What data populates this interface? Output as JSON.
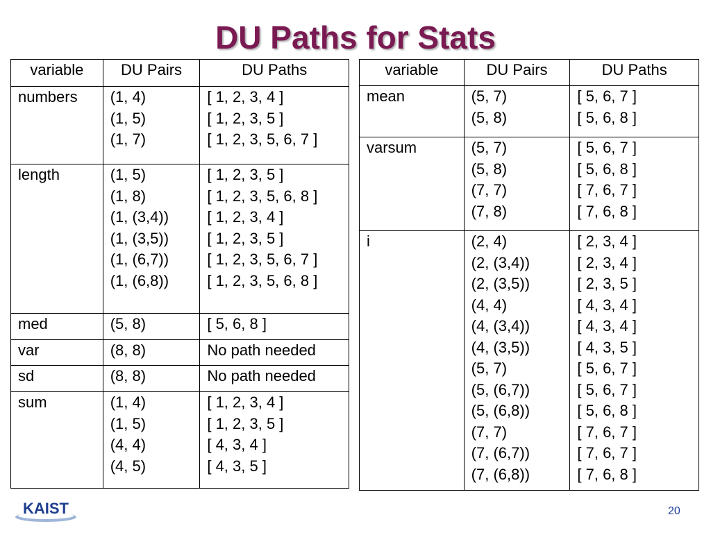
{
  "title": "DU Paths for Stats",
  "headers": [
    "variable",
    "DU Pairs",
    "DU Paths"
  ],
  "left_table": [
    {
      "variable": "numbers",
      "pairs": [
        "(1, 4)",
        "(1, 5)",
        "(1, 7)"
      ],
      "paths": [
        "[ 1, 2, 3, 4 ]",
        "[ 1, 2, 3, 5 ]",
        "[ 1, 2, 3, 5, 6, 7 ]"
      ]
    },
    {
      "variable": "length",
      "pairs": [
        "(1, 5)",
        "(1, 8)",
        "(1, (3,4))",
        "(1, (3,5))",
        "(1, (6,7))",
        "(1, (6,8))"
      ],
      "paths": [
        "[ 1, 2, 3, 5 ]",
        "[ 1, 2, 3, 5, 6, 8 ]",
        "[ 1, 2, 3, 4 ]",
        "[ 1, 2, 3, 5 ]",
        "[ 1, 2, 3, 5, 6, 7 ]",
        "[ 1, 2, 3, 5, 6, 8 ]"
      ]
    },
    {
      "variable": "med",
      "pairs": [
        "(5, 8)"
      ],
      "paths": [
        "[ 5, 6, 8 ]"
      ]
    },
    {
      "variable": "var",
      "pairs": [
        "(8, 8)"
      ],
      "paths": [
        "No path needed"
      ]
    },
    {
      "variable": "sd",
      "pairs": [
        "(8, 8)"
      ],
      "paths": [
        "No path needed"
      ]
    },
    {
      "variable": "sum",
      "pairs": [
        "(1, 4)",
        "(1, 5)",
        "(4, 4)",
        "(4, 5)"
      ],
      "paths": [
        "[ 1, 2, 3, 4 ]",
        "[ 1, 2, 3, 5 ]",
        "[ 4, 3, 4 ]",
        "[ 4, 3, 5 ]"
      ]
    }
  ],
  "right_table": [
    {
      "variable": "mean",
      "pairs": [
        "(5, 7)",
        "(5, 8)"
      ],
      "paths": [
        "[ 5, 6, 7 ]",
        "[ 5, 6, 8 ]"
      ]
    },
    {
      "variable": "varsum",
      "pairs": [
        "(5, 7)",
        "(5, 8)",
        "(7, 7)",
        "(7, 8)"
      ],
      "paths": [
        "[ 5, 6, 7 ]",
        "[ 5, 6, 8 ]",
        "[ 7, 6, 7 ]",
        "[ 7, 6, 8 ]"
      ]
    },
    {
      "variable": "i",
      "pairs": [
        "(2, 4)",
        "(2, (3,4))",
        "(2, (3,5))",
        "(4, 4)",
        "(4, (3,4))",
        "(4, (3,5))",
        "(5, 7)",
        "(5, (6,7))",
        "(5, (6,8))",
        "(7, 7)",
        "(7, (6,7))",
        "(7, (6,8))"
      ],
      "paths": [
        "[ 2, 3, 4 ]",
        "[ 2, 3, 4 ]",
        "[ 2, 3, 5 ]",
        "[ 4, 3, 4 ]",
        "[ 4, 3, 4 ]",
        "[ 4, 3, 5 ]",
        "[ 5, 6, 7 ]",
        "[ 5, 6, 7 ]",
        "[ 5, 6, 8 ]",
        "[ 7, 6, 7 ]",
        "[ 7, 6, 7 ]",
        "[ 7, 6, 8 ]"
      ]
    }
  ],
  "logo_text": "KAIST",
  "page_number": "20",
  "colors": {
    "title": "#7a1a52",
    "logo": "#1f3f8f",
    "page_number": "#1f3f9f"
  }
}
